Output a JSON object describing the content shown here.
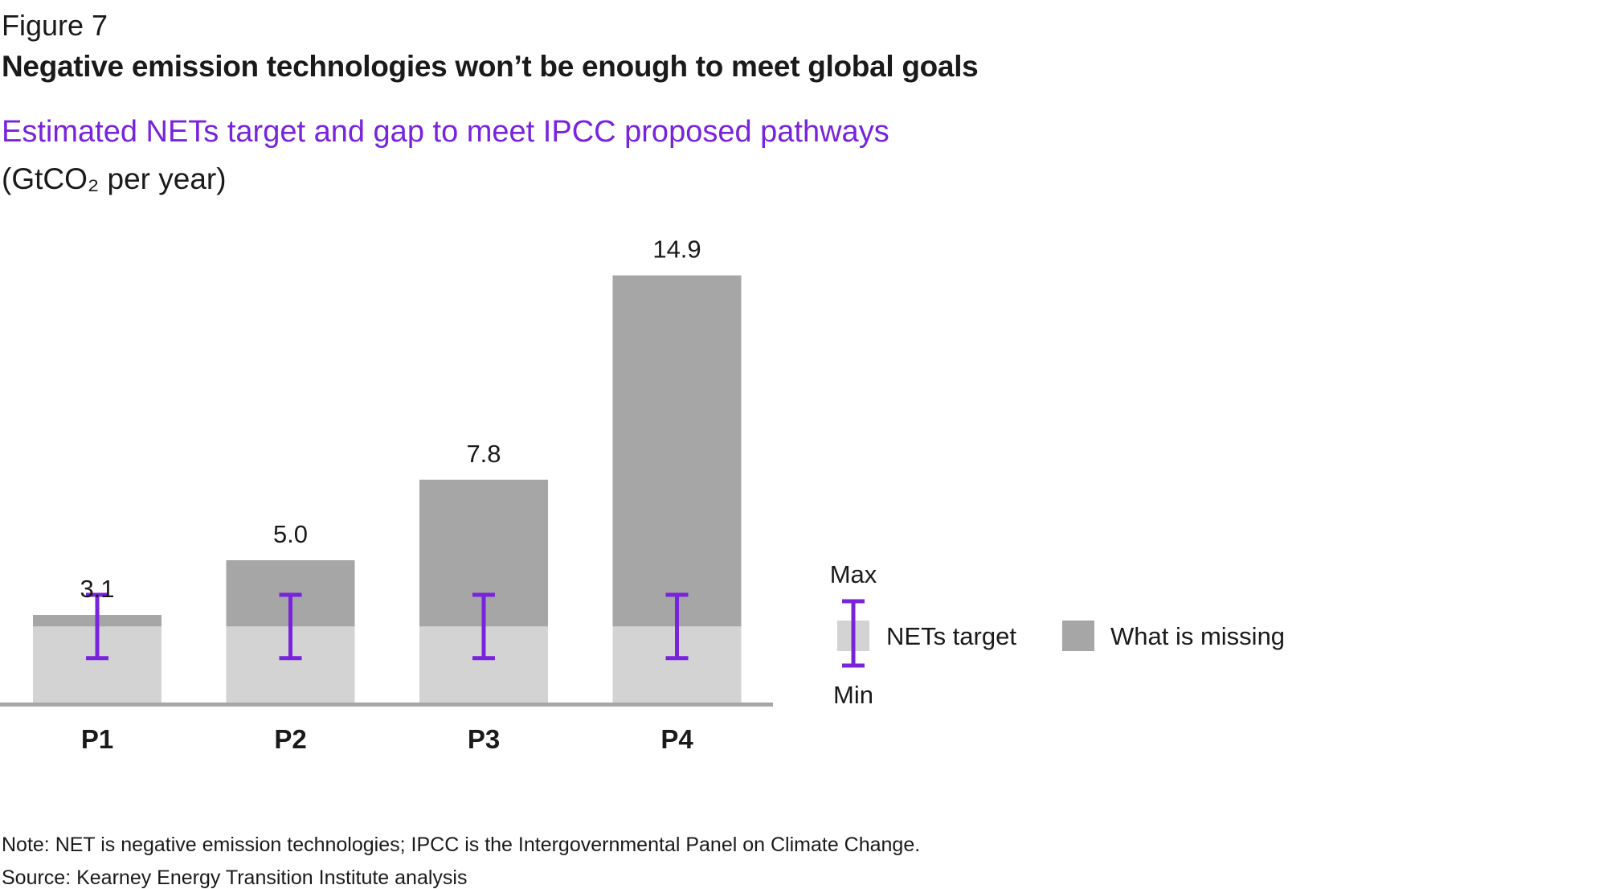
{
  "figure_label": "Figure 7",
  "title": "Negative emission technologies won’t be enough to meet global goals",
  "subtitle": "Estimated NETs target and gap to meet IPCC proposed pathways",
  "unit": "(GtCO₂ per year)",
  "note": "Note: NET is negative emission technologies; IPCC is the Intergovernmental Panel on Climate Change.",
  "source": "Source: Kearney Energy Transition Institute analysis",
  "colors": {
    "nets_target": "#D3D3D3",
    "missing": "#A6A6A6",
    "range": "#7823DC",
    "axis": "#A6A6A6"
  },
  "chart_data": {
    "type": "bar",
    "stacked": true,
    "categories": [
      "P1",
      "P2",
      "P3",
      "P4"
    ],
    "totals": [
      3.1,
      5.0,
      7.8,
      14.9
    ],
    "total_labels": [
      "3.1",
      "5.0",
      "7.8",
      "14.9"
    ],
    "series": [
      {
        "name": "NETs target",
        "values": [
          2.7,
          2.7,
          2.7,
          2.7
        ]
      },
      {
        "name": "What is missing",
        "values": [
          0.4,
          2.3,
          5.1,
          12.2
        ]
      }
    ],
    "nets_target_range": {
      "min": [
        1.6,
        1.6,
        1.6,
        1.6
      ],
      "max": [
        3.8,
        3.8,
        3.8,
        3.8
      ]
    },
    "ylim": [
      0,
      15
    ],
    "grid": false,
    "legend": {
      "placement": "right",
      "max_label": "Max",
      "min_label": "Min",
      "items": [
        "NETs target",
        "What is missing"
      ]
    }
  }
}
